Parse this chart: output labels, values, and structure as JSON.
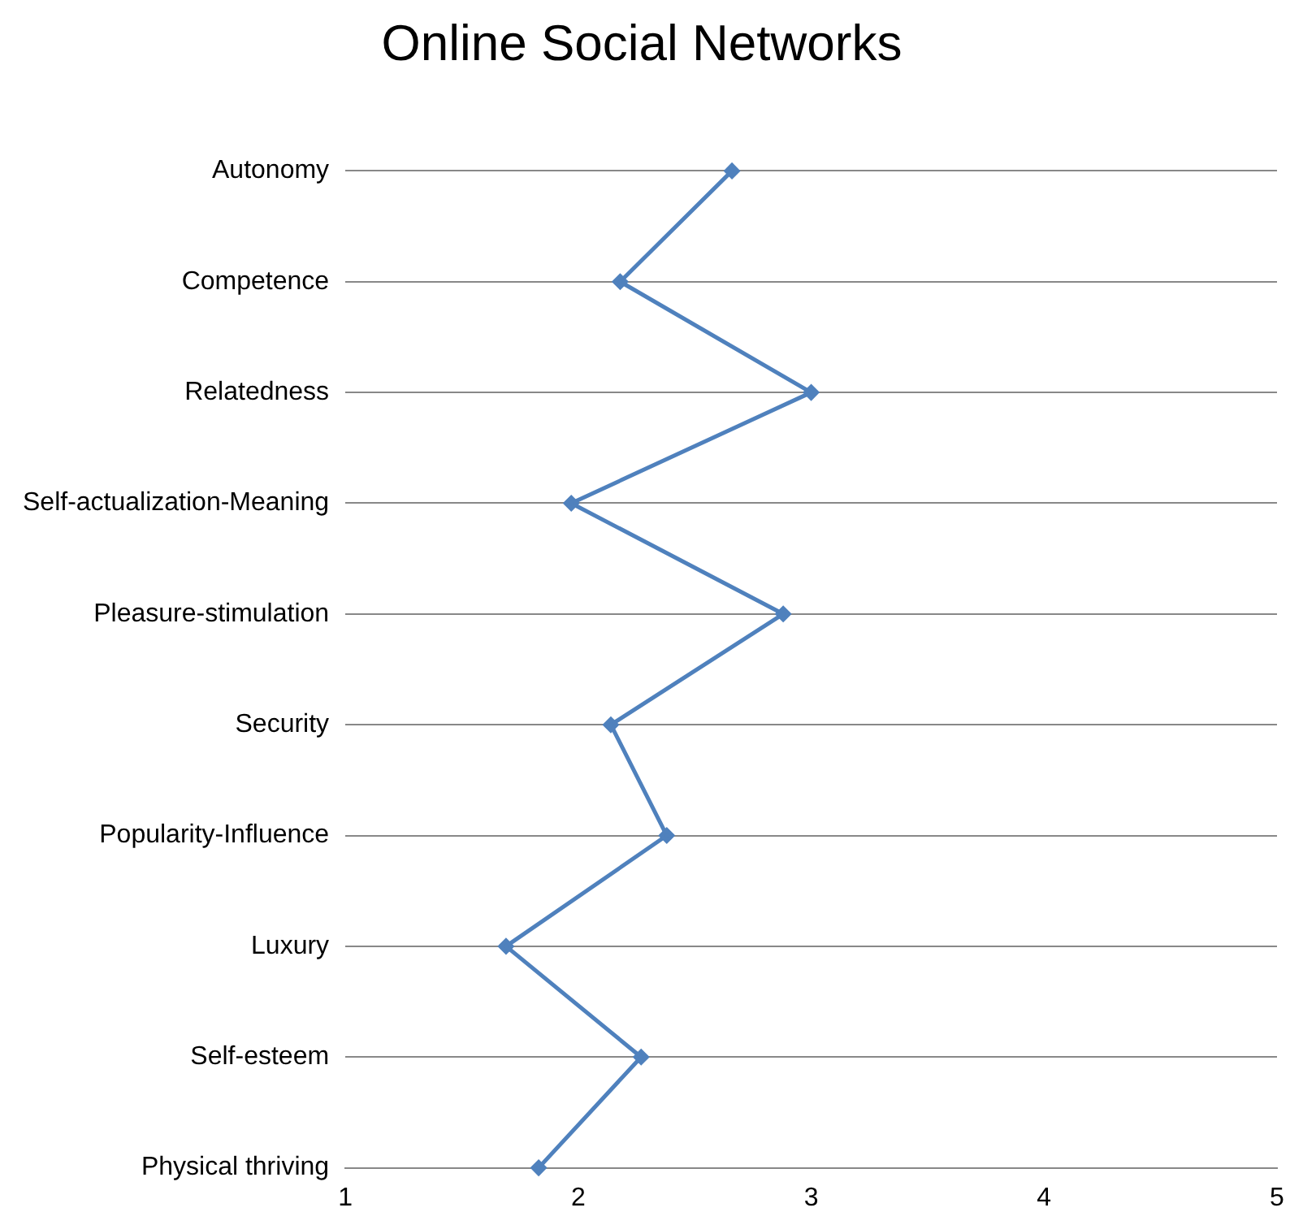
{
  "chart_data": {
    "type": "line",
    "title": "Online Social Networks",
    "orientation": "horizontal",
    "categories": [
      "Autonomy",
      "Competence",
      "Relatedness",
      "Self-actualization-Meaning",
      "Pleasure-stimulation",
      "Security",
      "Popularity-Influence",
      "Luxury",
      "Self-esteem",
      "Physical thriving"
    ],
    "series": [
      {
        "color": "#4f81bd",
        "values": [
          2.66,
          2.18,
          3.0,
          1.97,
          2.88,
          2.14,
          2.38,
          1.69,
          2.27,
          1.83
        ]
      }
    ],
    "xlim": [
      1,
      5
    ],
    "xticks": [
      1,
      2,
      3,
      4,
      5
    ],
    "grid": "y",
    "legend": false,
    "marker": "diamond",
    "line_style": "solid"
  }
}
